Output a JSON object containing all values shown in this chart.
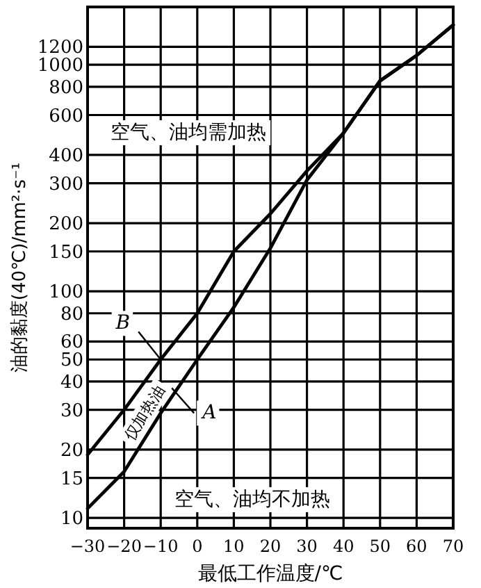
{
  "chart_data": {
    "type": "line",
    "xlabel": "最低工作温度/℃",
    "ylabel": "油的黏度(40℃)/mm²·s⁻¹",
    "x": [
      -30,
      -20,
      -10,
      0,
      10,
      20,
      30,
      40,
      50,
      60,
      70
    ],
    "series": [
      {
        "name": "B",
        "color": "#000000",
        "values": [
          19,
          30,
          50,
          80,
          150,
          220,
          340,
          500,
          850,
          1100,
          1500
        ]
      },
      {
        "name": "A",
        "color": "#000000",
        "values": [
          11,
          16,
          29,
          50,
          85,
          155,
          310,
          500,
          850,
          1100,
          1500
        ]
      }
    ],
    "annotations": [
      "空气、油均需加热",
      "仅加热油",
      "空气、油均不加热"
    ],
    "xlim": [
      -30,
      70
    ],
    "ylim": [
      9,
      1800
    ],
    "xticks": [
      -30,
      -20,
      -10,
      0,
      10,
      20,
      30,
      40,
      50,
      60,
      70
    ],
    "yticks": [
      10,
      15,
      20,
      30,
      40,
      50,
      60,
      80,
      100,
      150,
      200,
      300,
      400,
      600,
      800,
      1000,
      1200
    ],
    "grid": true,
    "log": "y",
    "marker": "none",
    "line_style": "solid"
  }
}
